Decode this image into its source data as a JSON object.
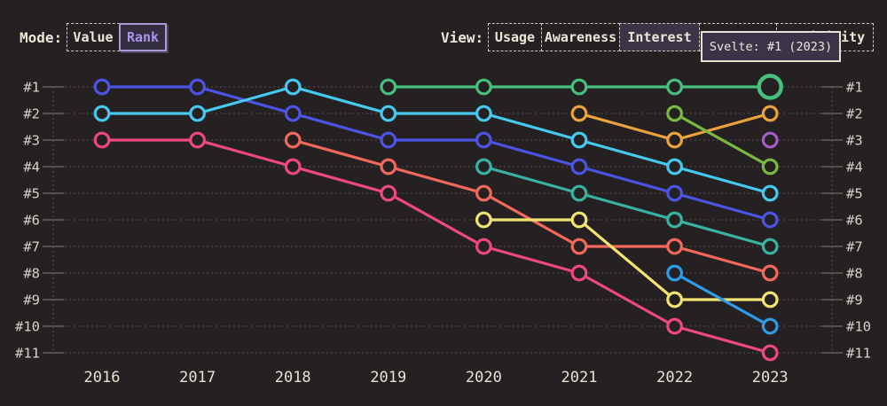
{
  "header": {
    "mode": {
      "label": "Mode:",
      "options": [
        {
          "label": "Value",
          "selected": false
        },
        {
          "label": "Rank",
          "selected": true
        }
      ]
    },
    "view": {
      "label": "View:",
      "options": [
        {
          "label": "Usage",
          "selected": false
        },
        {
          "label": "Awareness",
          "selected": false
        },
        {
          "label": "Interest",
          "selected": true
        },
        {
          "label": "",
          "selected": false
        },
        {
          "label": "Positivity",
          "selected": false
        }
      ]
    }
  },
  "tooltip": {
    "text": "Svelte: #1 (2023)"
  },
  "colors": {
    "background": "#252122",
    "grid_dots": "#56504e",
    "tick": "#857d78",
    "axis_text": "#d8d1c5",
    "accent_selected": "#ab93e8"
  },
  "chart_data": {
    "type": "line",
    "subtype": "bump-rank-chart",
    "title": "",
    "x": [
      2016,
      2017,
      2018,
      2019,
      2020,
      2021,
      2022,
      2023
    ],
    "y_axis_labels": [
      "#1",
      "#2",
      "#3",
      "#4",
      "#5",
      "#6",
      "#7",
      "#8",
      "#9",
      "#10",
      "#11"
    ],
    "y_range": [
      1,
      11
    ],
    "y_inverted": true,
    "grid": "dotted horizontal rank lines, dotted vertical axis lines both sides",
    "legend_position": "none",
    "series": [
      {
        "id": "royal-blue",
        "color": "#4b54e4",
        "points": {
          "2016": 1,
          "2017": 1,
          "2018": 2,
          "2019": 3,
          "2020": 3,
          "2021": 4,
          "2022": 5,
          "2023": 6
        }
      },
      {
        "id": "cyan",
        "color": "#45c9ef",
        "points": {
          "2016": 2,
          "2017": 2,
          "2018": 1,
          "2019": 2,
          "2020": 2,
          "2021": 3,
          "2022": 4,
          "2023": 5
        }
      },
      {
        "id": "pink",
        "color": "#ee4784",
        "points": {
          "2016": 3,
          "2017": 3,
          "2018": 4,
          "2019": 5,
          "2020": 7,
          "2021": 8,
          "2022": 10,
          "2023": 11
        }
      },
      {
        "id": "salmon",
        "color": "#f2695c",
        "points": {
          "2018": 3,
          "2019": 4,
          "2020": 5,
          "2021": 7,
          "2022": 7,
          "2023": 8
        }
      },
      {
        "id": "green-svelte",
        "color": "#46c07c",
        "points": {
          "2019": 1,
          "2020": 1,
          "2021": 1,
          "2022": 1,
          "2023": 1
        }
      },
      {
        "id": "teal",
        "color": "#38b2a3",
        "points": {
          "2020": 4,
          "2021": 5,
          "2022": 6,
          "2023": 7
        }
      },
      {
        "id": "yellow",
        "color": "#f2e372",
        "points": {
          "2020": 6,
          "2021": 6,
          "2022": 9,
          "2023": 9
        }
      },
      {
        "id": "amber",
        "color": "#eda33b",
        "points": {
          "2021": 2,
          "2022": 3,
          "2023": 2
        }
      },
      {
        "id": "lime",
        "color": "#7ab93f",
        "points": {
          "2022": 2,
          "2023": 4
        }
      },
      {
        "id": "sky-blue",
        "color": "#2f9ce8",
        "points": {
          "2022": 8,
          "2023": 10
        }
      },
      {
        "id": "purple",
        "color": "#a55cc6",
        "points": {
          "2023": 3
        }
      }
    ],
    "highlight": {
      "series": "green-svelte",
      "x": 2023,
      "label": "Svelte: #1 (2023)"
    }
  }
}
